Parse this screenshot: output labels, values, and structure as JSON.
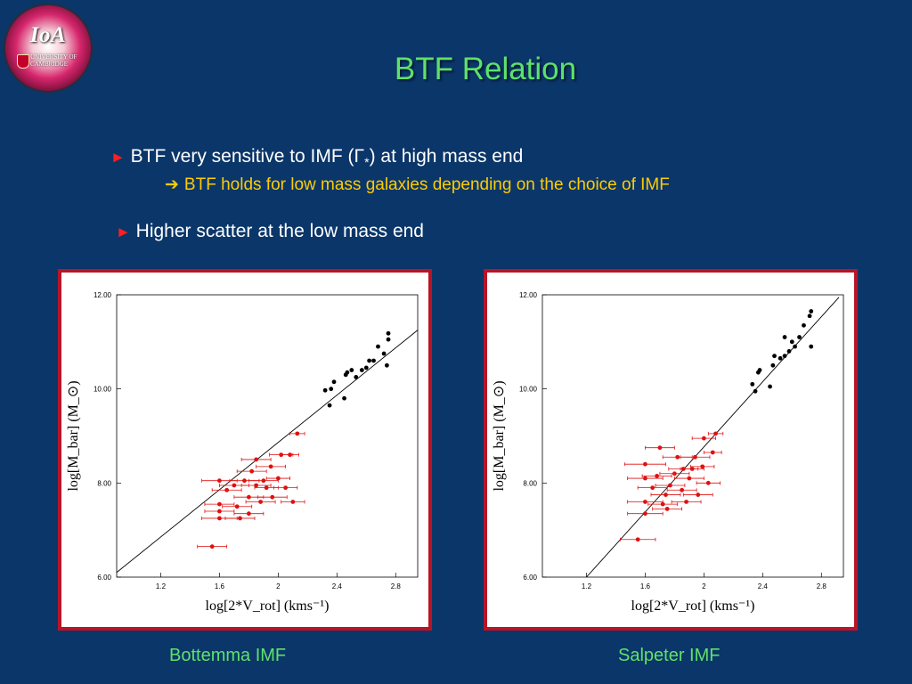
{
  "slide": {
    "title": "BTF Relation",
    "bullets": [
      {
        "marker": "►",
        "text_before": "BTF very sensitive to IMF (Γ",
        "subscript": "*",
        "text_after": ") at high mass end"
      },
      {
        "marker": "►",
        "text": "Higher scatter at the low mass end"
      }
    ],
    "sub_bullet": {
      "marker": "➔",
      "text": "BTF holds for low mass galaxies depending on the  choice of IMF"
    },
    "logo": {
      "name": "IoA",
      "line1": "UNIVERSITY OF",
      "line2": "CAMBRIDGE"
    },
    "colors": {
      "background": "#0b3669",
      "title": "#5fe16a",
      "bullet_marker": "#ff1f1f",
      "sub_bullet": "#ffcc00",
      "frame": "#b81426",
      "fit_line": "#000000",
      "red_points": "#e01010",
      "black_points": "#000000"
    }
  },
  "chart_data": [
    {
      "type": "scatter",
      "caption": "Bottemma IMF",
      "xlabel": "log[2*V_rot]  (kms⁻¹)",
      "ylabel": "log[M_bar]  (M_⊙)",
      "xlim": [
        0.9,
        2.95
      ],
      "ylim": [
        6.0,
        12.0
      ],
      "xticks": [
        "1.2",
        "1.6",
        "2",
        "2.4",
        "2.8"
      ],
      "yticks": [
        "6.00",
        "8.00",
        "10.00",
        "12.00"
      ],
      "fit_line": [
        [
          0.9,
          6.1
        ],
        [
          2.95,
          11.25
        ]
      ],
      "series": [
        {
          "group": "high-mass",
          "points": [
            [
              2.32,
              9.97,
              0.02
            ],
            [
              2.36,
              10.0,
              0.02
            ],
            [
              2.38,
              10.15,
              0.02
            ],
            [
              2.35,
              9.65,
              0.02
            ],
            [
              2.45,
              9.8,
              0.02
            ],
            [
              2.46,
              10.3,
              0.02
            ],
            [
              2.5,
              10.4,
              0.02
            ],
            [
              2.53,
              10.25,
              0.02
            ],
            [
              2.57,
              10.4,
              0.02
            ],
            [
              2.6,
              10.45,
              0.02
            ],
            [
              2.62,
              10.6,
              0.02
            ],
            [
              2.65,
              10.6,
              0.02
            ],
            [
              2.68,
              10.9,
              0.02
            ],
            [
              2.72,
              10.75,
              0.02
            ],
            [
              2.74,
              10.5,
              0.02
            ],
            [
              2.75,
              11.05,
              0.02
            ],
            [
              2.75,
              11.18,
              0.02
            ],
            [
              2.47,
              10.35,
              0.02
            ]
          ]
        },
        {
          "group": "low-mass",
          "points": [
            [
              1.55,
              6.65,
              0.1
            ],
            [
              1.6,
              8.05,
              0.12
            ],
            [
              1.6,
              7.55,
              0.1
            ],
            [
              1.6,
              7.4,
              0.1
            ],
            [
              1.6,
              7.25,
              0.12
            ],
            [
              1.65,
              7.85,
              0.1
            ],
            [
              1.7,
              7.95,
              0.1
            ],
            [
              1.72,
              7.5,
              0.1
            ],
            [
              1.74,
              7.25,
              0.1
            ],
            [
              1.77,
              8.05,
              0.1
            ],
            [
              1.8,
              7.7,
              0.1
            ],
            [
              1.82,
              8.25,
              0.1
            ],
            [
              1.85,
              7.95,
              0.1
            ],
            [
              1.85,
              8.5,
              0.1
            ],
            [
              1.88,
              7.6,
              0.1
            ],
            [
              1.9,
              8.05,
              0.1
            ],
            [
              1.92,
              7.9,
              0.08
            ],
            [
              1.95,
              8.35,
              0.1
            ],
            [
              1.96,
              7.7,
              0.1
            ],
            [
              2.0,
              8.1,
              0.08
            ],
            [
              2.02,
              8.6,
              0.08
            ],
            [
              2.05,
              7.9,
              0.08
            ],
            [
              2.08,
              8.6,
              0.06
            ],
            [
              2.1,
              7.6,
              0.08
            ],
            [
              2.13,
              9.05,
              0.05
            ],
            [
              1.8,
              7.35,
              0.1
            ]
          ]
        }
      ]
    },
    {
      "type": "scatter",
      "caption": "Salpeter IMF",
      "xlabel": "log[2*V_rot]  (kms⁻¹)",
      "ylabel": "log[M_bar]  (M_⊙)",
      "xlim": [
        0.9,
        2.95
      ],
      "ylim": [
        6.0,
        12.0
      ],
      "xticks": [
        "1.2",
        "1.6",
        "2",
        "2.4",
        "2.8"
      ],
      "yticks": [
        "6.00",
        "8.00",
        "10.00",
        "12.00"
      ],
      "fit_line": [
        [
          1.2,
          6.0
        ],
        [
          2.92,
          11.95
        ]
      ],
      "series": [
        {
          "group": "high-mass",
          "points": [
            [
              2.33,
              10.1,
              0.02
            ],
            [
              2.35,
              9.95,
              0.02
            ],
            [
              2.37,
              10.35,
              0.02
            ],
            [
              2.38,
              10.4,
              0.02
            ],
            [
              2.45,
              10.05,
              0.02
            ],
            [
              2.47,
              10.5,
              0.02
            ],
            [
              2.48,
              10.7,
              0.02
            ],
            [
              2.52,
              10.65,
              0.02
            ],
            [
              2.55,
              10.7,
              0.02
            ],
            [
              2.58,
              10.8,
              0.02
            ],
            [
              2.6,
              11.0,
              0.02
            ],
            [
              2.62,
              10.9,
              0.02
            ],
            [
              2.65,
              11.1,
              0.02
            ],
            [
              2.68,
              11.35,
              0.02
            ],
            [
              2.72,
              11.55,
              0.02
            ],
            [
              2.73,
              11.65,
              0.02
            ],
            [
              2.73,
              10.9,
              0.02
            ],
            [
              2.55,
              11.1,
              0.02
            ]
          ]
        },
        {
          "group": "low-mass",
          "points": [
            [
              1.55,
              6.8,
              0.12
            ],
            [
              1.6,
              8.4,
              0.14
            ],
            [
              1.6,
              8.1,
              0.12
            ],
            [
              1.6,
              7.6,
              0.12
            ],
            [
              1.6,
              7.35,
              0.12
            ],
            [
              1.65,
              7.9,
              0.1
            ],
            [
              1.68,
              8.15,
              0.1
            ],
            [
              1.72,
              7.55,
              0.1
            ],
            [
              1.74,
              7.75,
              0.1
            ],
            [
              1.77,
              7.95,
              0.1
            ],
            [
              1.8,
              8.2,
              0.1
            ],
            [
              1.82,
              8.55,
              0.1
            ],
            [
              1.85,
              7.85,
              0.1
            ],
            [
              1.86,
              8.3,
              0.1
            ],
            [
              1.88,
              7.6,
              0.1
            ],
            [
              1.9,
              8.1,
              0.1
            ],
            [
              1.92,
              8.3,
              0.08
            ],
            [
              1.94,
              8.55,
              0.1
            ],
            [
              1.96,
              7.75,
              0.1
            ],
            [
              1.99,
              8.35,
              0.08
            ],
            [
              2.0,
              8.95,
              0.08
            ],
            [
              2.03,
              8.0,
              0.08
            ],
            [
              2.06,
              8.65,
              0.06
            ],
            [
              2.08,
              9.05,
              0.05
            ],
            [
              1.75,
              7.45,
              0.1
            ],
            [
              1.7,
              8.75,
              0.1
            ]
          ]
        }
      ]
    }
  ]
}
